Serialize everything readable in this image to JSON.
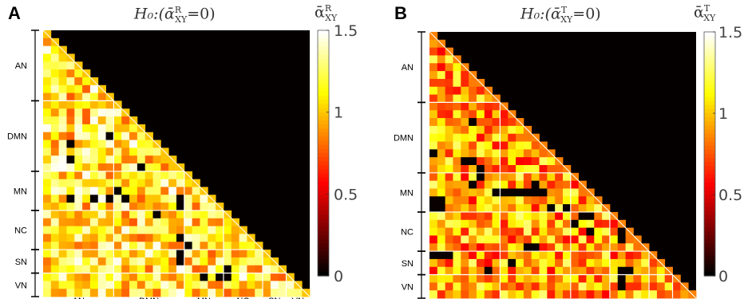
{
  "chart_data": [
    {
      "type": "heatmap",
      "panel_label": "A",
      "title": "H₀:(ᾱ",
      "title_sup": "R",
      "title_sub": "XY",
      "title_tail": "=0)",
      "colorbar_symbol": "ᾱ",
      "colorbar_sup": "R",
      "colorbar_sub": "XY",
      "colorbar_ticks": [
        "1.5",
        "1",
        "0.5",
        "0"
      ],
      "colorbar_range": [
        0,
        1.5
      ],
      "colormap": "hot",
      "groups": [
        {
          "label": "AN",
          "size": 9
        },
        {
          "label": "DMN",
          "size": 9
        },
        {
          "label": "MN",
          "size": 5
        },
        {
          "label": "NC",
          "size": 5
        },
        {
          "label": "SN",
          "size": 3
        },
        {
          "label": "VN",
          "size": 3
        }
      ],
      "n": 34,
      "triangle": "lower",
      "zero_cells": [
        [
          14,
          3
        ],
        [
          16,
          3
        ],
        [
          13,
          8
        ],
        [
          17,
          12
        ],
        [
          20,
          9
        ],
        [
          21,
          3
        ],
        [
          21,
          6
        ],
        [
          21,
          8
        ],
        [
          21,
          10
        ],
        [
          22,
          17
        ],
        [
          21,
          17
        ],
        [
          23,
          14
        ],
        [
          26,
          17
        ],
        [
          27,
          18
        ],
        [
          28,
          17
        ],
        [
          29,
          17
        ],
        [
          30,
          23
        ],
        [
          31,
          23
        ],
        [
          31,
          20
        ],
        [
          31,
          22
        ]
      ],
      "values_note": ""
    },
    {
      "type": "heatmap",
      "panel_label": "B",
      "title": "H₀:(ᾱ",
      "title_sup": "T",
      "title_sub": "XY",
      "title_tail": "=0)",
      "colorbar_symbol": "ᾱ",
      "colorbar_sup": "T",
      "colorbar_sub": "XY",
      "colorbar_ticks": [
        "1.5",
        "1",
        "0.5",
        "0"
      ],
      "colorbar_range": [
        0,
        1.5
      ],
      "colormap": "hot",
      "groups": [
        {
          "label": "AN",
          "size": 9
        },
        {
          "label": "DMN",
          "size": 9
        },
        {
          "label": "MN",
          "size": 5
        },
        {
          "label": "NC",
          "size": 5
        },
        {
          "label": "SN",
          "size": 3
        },
        {
          "label": "VN",
          "size": 3
        }
      ],
      "n": 34,
      "triangle": "lower",
      "zero_cells": [
        [
          11,
          5
        ],
        [
          15,
          0
        ],
        [
          16,
          4
        ],
        [
          16,
          5
        ],
        [
          17,
          6
        ],
        [
          18,
          6
        ],
        [
          19,
          5
        ],
        [
          19,
          13
        ],
        [
          20,
          8
        ],
        [
          20,
          9
        ],
        [
          20,
          10
        ],
        [
          20,
          11
        ],
        [
          20,
          12
        ],
        [
          20,
          13
        ],
        [
          20,
          14
        ],
        [
          21,
          0
        ],
        [
          21,
          1
        ],
        [
          22,
          0
        ],
        [
          22,
          1
        ],
        [
          22,
          15
        ],
        [
          22,
          17
        ],
        [
          23,
          19
        ],
        [
          23,
          20
        ],
        [
          24,
          18
        ],
        [
          25,
          20
        ],
        [
          25,
          24
        ],
        [
          26,
          24
        ],
        [
          27,
          12
        ],
        [
          27,
          13
        ],
        [
          28,
          0
        ],
        [
          28,
          1
        ],
        [
          28,
          2
        ],
        [
          29,
          10
        ],
        [
          30,
          7
        ],
        [
          30,
          24
        ],
        [
          30,
          25
        ],
        [
          31,
          24
        ],
        [
          32,
          24
        ]
      ]
    }
  ]
}
